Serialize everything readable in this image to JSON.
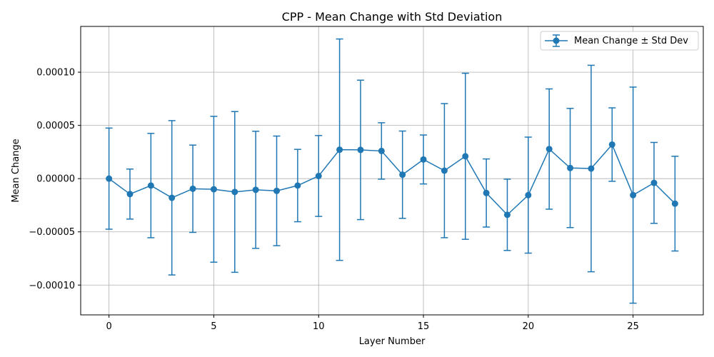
{
  "chart_data": {
    "type": "line",
    "title": "CPP - Mean Change with Std Deviation",
    "xlabel": "Layer Number",
    "ylabel": "Mean Change",
    "xlim": [
      -1.35,
      28.35
    ],
    "ylim": [
      -0.000128,
      0.000143
    ],
    "xticks": [
      0,
      5,
      10,
      15,
      20,
      25
    ],
    "xtick_labels": [
      "0",
      "5",
      "10",
      "15",
      "20",
      "25"
    ],
    "yticks": [
      -0.0001,
      -5e-05,
      0.0,
      5e-05,
      0.0001
    ],
    "ytick_labels": [
      "−0.00010",
      "−0.00005",
      "0.00000",
      "0.00005",
      "0.00010"
    ],
    "grid": true,
    "legend_position": "top-right",
    "series": [
      {
        "name": "Mean Change ± Std Dev",
        "color": "#1f77b4",
        "x": [
          0,
          1,
          2,
          3,
          4,
          5,
          6,
          7,
          8,
          9,
          10,
          11,
          12,
          13,
          14,
          15,
          16,
          17,
          18,
          19,
          20,
          21,
          22,
          23,
          24,
          25,
          26,
          27
        ],
        "y": [
          0.0,
          -1.45e-05,
          -6.5e-06,
          -1.8e-05,
          -9.5e-06,
          -1e-05,
          -1.25e-05,
          -1.05e-05,
          -1.15e-05,
          -6.5e-06,
          2.5e-06,
          2.72e-05,
          2.7e-05,
          2.6e-05,
          3.7e-06,
          1.8e-05,
          7.5e-06,
          2.1e-05,
          -1.35e-05,
          -3.4e-05,
          -1.55e-05,
          2.78e-05,
          1e-05,
          9.5e-06,
          3.2e-05,
          -1.55e-05,
          -4e-06,
          -2.35e-05
        ],
        "yerr": [
          4.75e-05,
          2.35e-05,
          4.9e-05,
          7.25e-05,
          4.1e-05,
          6.85e-05,
          7.55e-05,
          5.5e-05,
          5.15e-05,
          3.4e-05,
          3.8e-05,
          0.000104,
          6.55e-05,
          2.65e-05,
          4.1e-05,
          2.3e-05,
          6.3e-05,
          7.8e-05,
          3.2e-05,
          3.35e-05,
          5.45e-05,
          5.65e-05,
          5.6e-05,
          9.7e-05,
          3.45e-05,
          0.0001015,
          3.8e-05,
          4.45e-05
        ]
      }
    ]
  }
}
